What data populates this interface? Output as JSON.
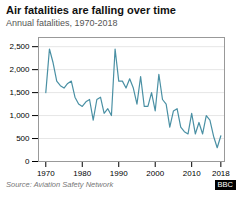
{
  "chart_data": {
    "type": "line",
    "title": "Air fatalities are falling over time",
    "subtitle": "Annual fatalities, 1970-2018",
    "source": "Source: Aviation Safety Network",
    "annotations": [
      "BBC"
    ],
    "x": [
      1970,
      1971,
      1972,
      1973,
      1974,
      1975,
      1976,
      1977,
      1978,
      1979,
      1980,
      1981,
      1982,
      1983,
      1984,
      1985,
      1986,
      1987,
      1988,
      1989,
      1990,
      1991,
      1992,
      1993,
      1994,
      1995,
      1996,
      1997,
      1998,
      1999,
      2000,
      2001,
      2002,
      2003,
      2004,
      2005,
      2006,
      2007,
      2008,
      2009,
      2010,
      2011,
      2012,
      2013,
      2014,
      2015,
      2016,
      2017,
      2018
    ],
    "values": [
      1500,
      2450,
      2150,
      1750,
      1650,
      1600,
      1700,
      1750,
      1400,
      1250,
      1200,
      1300,
      1350,
      900,
      1350,
      1400,
      1050,
      1150,
      1000,
      2450,
      1750,
      1750,
      1600,
      1800,
      1600,
      1250,
      1850,
      1200,
      1200,
      1500,
      1100,
      1900,
      1350,
      1250,
      750,
      1100,
      1150,
      750,
      650,
      600,
      1050,
      600,
      850,
      600,
      1000,
      900,
      550,
      300,
      560
    ],
    "color": "#4a90a4",
    "xlim": [
      1968,
      2019
    ],
    "xticks": [
      1970,
      1980,
      1990,
      2000,
      2010,
      2018
    ],
    "ylim": [
      0,
      2700
    ],
    "yticks": [
      0,
      500,
      {
        "value": 1000,
        "label": "1,000"
      },
      {
        "value": 1500,
        "label": "1,500"
      },
      {
        "value": 2000,
        "label": "2,000"
      },
      {
        "value": 2500,
        "label": "2,500"
      }
    ],
    "grid": true
  }
}
